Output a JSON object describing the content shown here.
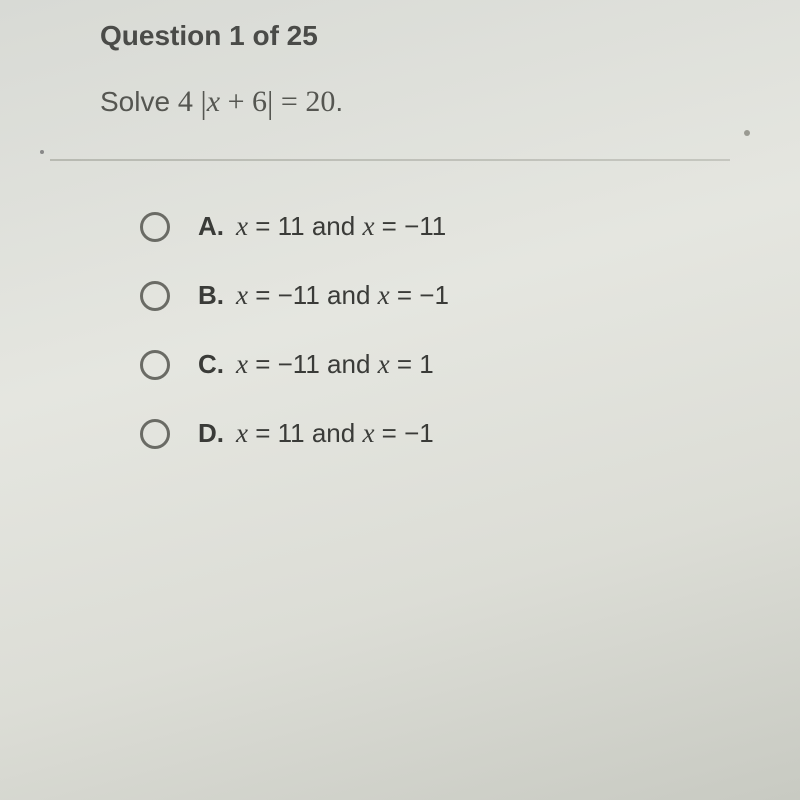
{
  "header": {
    "question_number": 1,
    "total_questions": 25,
    "label": "Question 1 of 25"
  },
  "question": {
    "prefix": "Solve ",
    "coefficient": "4",
    "abs_open": "|",
    "variable": "x",
    "plus": " + ",
    "constant": "6",
    "abs_close": "|",
    "equals": " = ",
    "rhs": "20",
    "period": "."
  },
  "options": [
    {
      "letter": "A.",
      "text_parts": [
        "x",
        " = 11 and ",
        "x",
        " = ",
        "−11"
      ]
    },
    {
      "letter": "B.",
      "text_parts": [
        "x",
        " = ",
        "−11",
        " and ",
        "x",
        " = ",
        "−1"
      ]
    },
    {
      "letter": "C.",
      "text_parts": [
        "x",
        " = ",
        "−11",
        " and ",
        "x",
        " = 1"
      ]
    },
    {
      "letter": "D.",
      "text_parts": [
        "x",
        " = 11 and ",
        "x",
        " = ",
        "−1"
      ]
    }
  ],
  "styling": {
    "background_gradient": [
      "#d8dad5",
      "#e5e6e0",
      "#dcddd6",
      "#c8cac2"
    ],
    "header_color": "#4a4b48",
    "header_fontsize": 28,
    "question_color": "#555651",
    "question_fontsize": 28,
    "math_fontsize": 30,
    "divider_color": "#b8bab2",
    "radio_border_color": "#6a6b65",
    "radio_size": 30,
    "option_fontsize": 26,
    "option_color": "#3a3b38",
    "option_spacing": 38
  }
}
